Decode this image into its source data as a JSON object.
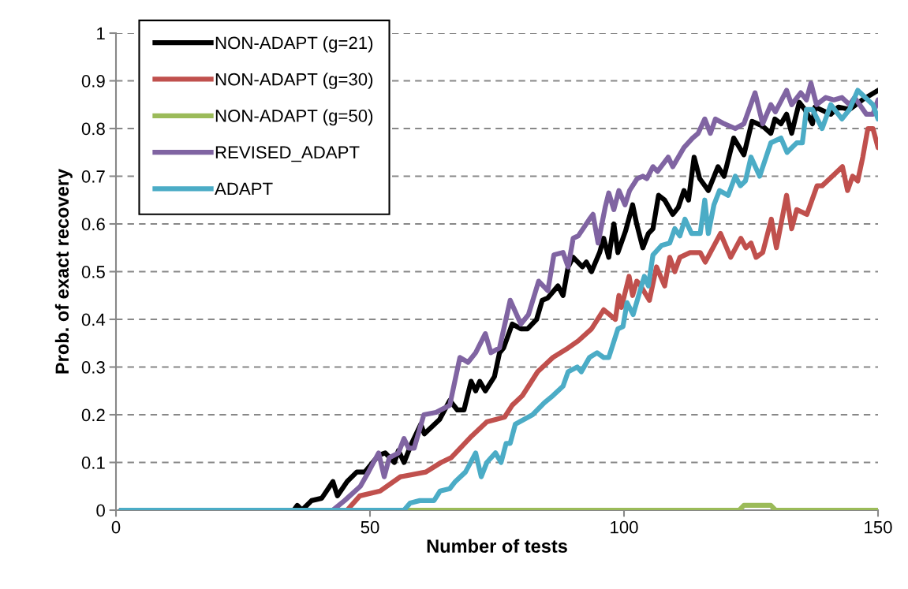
{
  "chart_data": {
    "type": "line",
    "xlabel": "Number of tests",
    "ylabel": "Prob. of exact recovery",
    "xlim": [
      0,
      150
    ],
    "xticks": [
      0,
      50,
      100,
      150
    ],
    "ylim": [
      0,
      1
    ],
    "yticks": [
      0,
      0.1,
      0.2,
      0.3,
      0.4,
      0.5,
      0.6,
      0.7,
      0.8,
      0.9,
      1
    ],
    "grid": "y",
    "legend": "top left",
    "line_style": "solid",
    "marker": "none",
    "series": [
      {
        "name": "NON-ADAPT (g=21)",
        "color": "#000000",
        "x": [
          1,
          35,
          35.7,
          36.6,
          38.5,
          40.5,
          42.7,
          43.6,
          45.5,
          47.4,
          49,
          51.7,
          53,
          54.8,
          55.6,
          56.7,
          58.2,
          60,
          60.7,
          63.7,
          65.7,
          67.2,
          68.5,
          69.9,
          70.8,
          71.6,
          72.7,
          74.5,
          75.5,
          76.3,
          78,
          79.7,
          81,
          82.8,
          83.9,
          85,
          87,
          88,
          89,
          90,
          91.8,
          92.6,
          93.6,
          95.2,
          96,
          97,
          98,
          98.8,
          100.3,
          101.7,
          102.5,
          103.7,
          104.8,
          105.7,
          106.8,
          108,
          109.6,
          110.7,
          111.8,
          112.7,
          113.8,
          114.9,
          116.6,
          118.5,
          119.7,
          121.6,
          123.6,
          125.2,
          127.3,
          128.9,
          129.7,
          130.9,
          132,
          133,
          134.5,
          135.6,
          137.1,
          137.6,
          140.7,
          142.2,
          144.4,
          146.9,
          150
        ],
        "values": [
          0,
          0,
          0.01,
          0,
          0.02,
          0.025,
          0.06,
          0.03,
          0.06,
          0.08,
          0.08,
          0.115,
          0.12,
          0.1,
          0.125,
          0.1,
          0.14,
          0.18,
          0.16,
          0.19,
          0.23,
          0.21,
          0.21,
          0.27,
          0.25,
          0.27,
          0.25,
          0.28,
          0.33,
          0.34,
          0.39,
          0.38,
          0.38,
          0.4,
          0.44,
          0.445,
          0.47,
          0.45,
          0.51,
          0.53,
          0.51,
          0.52,
          0.5,
          0.54,
          0.57,
          0.53,
          0.6,
          0.54,
          0.585,
          0.64,
          0.6,
          0.55,
          0.58,
          0.59,
          0.66,
          0.65,
          0.62,
          0.635,
          0.67,
          0.65,
          0.74,
          0.695,
          0.67,
          0.72,
          0.7,
          0.78,
          0.745,
          0.815,
          0.805,
          0.79,
          0.82,
          0.81,
          0.83,
          0.79,
          0.855,
          0.84,
          0.81,
          0.845,
          0.83,
          0.845,
          0.84,
          0.86,
          0.88
        ]
      },
      {
        "name": "NON-ADAPT (g=30)",
        "color": "#c0504d",
        "x": [
          1,
          45.5,
          48,
          52,
          56,
          61,
          64,
          66,
          70,
          73,
          76.5,
          78,
          80,
          83,
          86,
          89,
          91,
          93.6,
          96,
          98.3,
          99,
          99.5,
          101,
          101.7,
          102.5,
          103,
          105,
          106.4,
          108,
          109,
          110,
          111,
          113,
          115,
          116,
          117,
          119,
          121,
          123,
          124,
          125,
          126,
          127.3,
          129,
          130,
          132,
          133,
          134,
          136,
          138,
          139,
          141,
          143,
          144,
          145,
          146,
          147,
          148,
          149,
          150
        ],
        "values": [
          0,
          0,
          0.03,
          0.04,
          0.07,
          0.08,
          0.1,
          0.11,
          0.155,
          0.185,
          0.195,
          0.22,
          0.24,
          0.29,
          0.32,
          0.34,
          0.355,
          0.38,
          0.42,
          0.4,
          0.45,
          0.425,
          0.49,
          0.45,
          0.48,
          0.475,
          0.44,
          0.51,
          0.47,
          0.53,
          0.5,
          0.53,
          0.54,
          0.54,
          0.52,
          0.54,
          0.58,
          0.53,
          0.57,
          0.55,
          0.56,
          0.53,
          0.54,
          0.61,
          0.55,
          0.66,
          0.59,
          0.63,
          0.62,
          0.68,
          0.68,
          0.7,
          0.72,
          0.67,
          0.7,
          0.69,
          0.74,
          0.8,
          0.8,
          0.76
        ]
      },
      {
        "name": "NON-ADAPT (g=50)",
        "color": "#9bbb59",
        "x": [
          1,
          122.7,
          123.6,
          128.9,
          129.8,
          150
        ],
        "values": [
          0,
          0,
          0.01,
          0.01,
          0,
          0
        ]
      },
      {
        "name": "REVISED_ADAPT",
        "color": "#8064a2",
        "x": [
          1,
          42.7,
          45,
          48.1,
          49.7,
          51.7,
          52.8,
          53.8,
          55.6,
          56.7,
          57.6,
          58.7,
          60.6,
          63,
          65.7,
          67.7,
          69.3,
          70.8,
          72.7,
          73.8,
          75.5,
          77.6,
          79.7,
          81.2,
          83.2,
          85,
          86.2,
          88,
          89,
          90,
          91,
          93.2,
          93.9,
          94.9,
          96.3,
          97,
          98,
          99,
          100.2,
          101.1,
          102.6,
          103.7,
          104.5,
          105.7,
          106.6,
          108.7,
          109.6,
          111.8,
          113.5,
          114.6,
          115.9,
          117,
          118,
          119.7,
          121.9,
          123.6,
          125.8,
          127.3,
          128.9,
          129.8,
          132,
          133,
          134.8,
          135.9,
          136.8,
          137.9,
          139.7,
          141.3,
          142.9,
          144.4,
          145.4,
          147.7,
          149,
          150
        ],
        "values": [
          0,
          0,
          0.02,
          0.05,
          0.08,
          0.12,
          0.07,
          0.11,
          0.12,
          0.15,
          0.13,
          0.13,
          0.2,
          0.205,
          0.22,
          0.32,
          0.31,
          0.33,
          0.37,
          0.33,
          0.34,
          0.44,
          0.39,
          0.41,
          0.48,
          0.46,
          0.535,
          0.54,
          0.51,
          0.57,
          0.575,
          0.61,
          0.62,
          0.56,
          0.635,
          0.665,
          0.63,
          0.67,
          0.64,
          0.67,
          0.695,
          0.7,
          0.695,
          0.72,
          0.71,
          0.74,
          0.72,
          0.76,
          0.78,
          0.79,
          0.82,
          0.79,
          0.82,
          0.81,
          0.8,
          0.81,
          0.875,
          0.81,
          0.85,
          0.835,
          0.88,
          0.85,
          0.875,
          0.86,
          0.895,
          0.85,
          0.865,
          0.86,
          0.865,
          0.85,
          0.865,
          0.83,
          0.83,
          0.86
        ]
      },
      {
        "name": "ADAPT",
        "color": "#4bacc6",
        "x": [
          1,
          56.7,
          57.9,
          59.8,
          62.6,
          63.8,
          65.7,
          66.8,
          68.8,
          70.8,
          71.9,
          73,
          74.7,
          75.8,
          76.8,
          77.6,
          78.6,
          82,
          84.3,
          86,
          88,
          89,
          90.8,
          91.6,
          93.2,
          94.7,
          96,
          97,
          98.8,
          99.8,
          100.6,
          101.8,
          103.3,
          104,
          104.8,
          105.7,
          107.4,
          109,
          110,
          111,
          112,
          113.3,
          115,
          115.9,
          116.6,
          117.7,
          118.8,
          120.5,
          121.9,
          122.9,
          123.9,
          125,
          126.7,
          128.9,
          130.9,
          132.1,
          134,
          135.1,
          135.9,
          137.1,
          139,
          140.7,
          142.9,
          144.4,
          146,
          148,
          149,
          150
        ],
        "values": [
          0,
          0,
          0.015,
          0.02,
          0.02,
          0.04,
          0.045,
          0.06,
          0.08,
          0.12,
          0.07,
          0.1,
          0.12,
          0.1,
          0.14,
          0.14,
          0.18,
          0.2,
          0.225,
          0.24,
          0.26,
          0.29,
          0.3,
          0.29,
          0.32,
          0.33,
          0.32,
          0.32,
          0.38,
          0.385,
          0.435,
          0.41,
          0.465,
          0.49,
          0.47,
          0.535,
          0.555,
          0.56,
          0.59,
          0.575,
          0.61,
          0.58,
          0.58,
          0.65,
          0.58,
          0.64,
          0.67,
          0.66,
          0.7,
          0.68,
          0.69,
          0.74,
          0.7,
          0.77,
          0.78,
          0.75,
          0.77,
          0.77,
          0.84,
          0.84,
          0.8,
          0.85,
          0.82,
          0.84,
          0.88,
          0.86,
          0.85,
          0.82
        ]
      }
    ]
  }
}
